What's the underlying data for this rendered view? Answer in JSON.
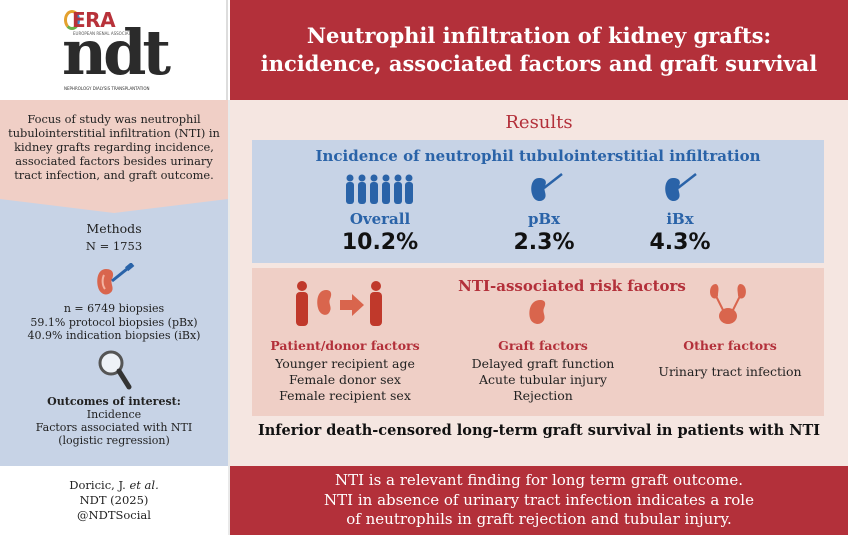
{
  "logo": {
    "era": "ERA",
    "era_sub": "EUROPEAN RENAL ASSOCIATION",
    "ndt": "ndt",
    "ndt_sub": "NEPHROLOGY DIALYSIS TRANSPLANTATION"
  },
  "header": {
    "title": "Neutrophil infiltration of kidney grafts: incidence, associated factors and graft survival"
  },
  "left": {
    "focus": "Focus of study was neutrophil tubulointerstitial infiltration (NTI) in kidney grafts regarding incidence, associated factors besides urinary tract infection, and graft outcome.",
    "methods_title": "Methods",
    "methods_n": "N = 1753",
    "biopsies": [
      "n = 6749 biopsies",
      "59.1% protocol biopsies (pBx)",
      "40.9% indication biopsies (iBx)"
    ],
    "outcomes_title": "Outcomes of interest:",
    "outcomes": [
      "Incidence",
      "Factors associated with NTI",
      "(logistic regression)"
    ]
  },
  "results": {
    "title": "Results",
    "incidence_title": "Incidence of neutrophil tubulointerstitial infiltration",
    "stats": [
      {
        "label": "Overall",
        "value": "10.2%"
      },
      {
        "label": "pBx",
        "value": "2.3%"
      },
      {
        "label": "iBx",
        "value": "4.3%"
      }
    ],
    "risk_title": "NTI-associated risk factors",
    "patient": {
      "header": "Patient/donor factors",
      "items": [
        "Younger recipient age",
        "Female donor sex",
        "Female recipient sex"
      ]
    },
    "graft": {
      "header": "Graft factors",
      "items": [
        "Delayed graft function",
        "Acute tubular injury",
        "Rejection"
      ]
    },
    "other": {
      "header": "Other factors",
      "items": [
        "Urinary tract infection"
      ]
    },
    "survival": "Inferior death-censored long-term graft survival in patients with NTI"
  },
  "citation": {
    "line1": "Doricic, J. ",
    "et_al": "et al.",
    "line2": "NDT (2025)",
    "line3": "@NDTSocial"
  },
  "footer": {
    "lines": [
      "NTI is a relevant finding for long term graft outcome.",
      "NTI in absence of urinary tract infection indicates a role",
      "of neutrophils in graft rejection and tubular injury."
    ]
  },
  "colors": {
    "brand_red": "#b3303a",
    "blue": "#2a63a8",
    "panel_blue": "#c7d3e6",
    "panel_pink": "#efcfc6"
  }
}
